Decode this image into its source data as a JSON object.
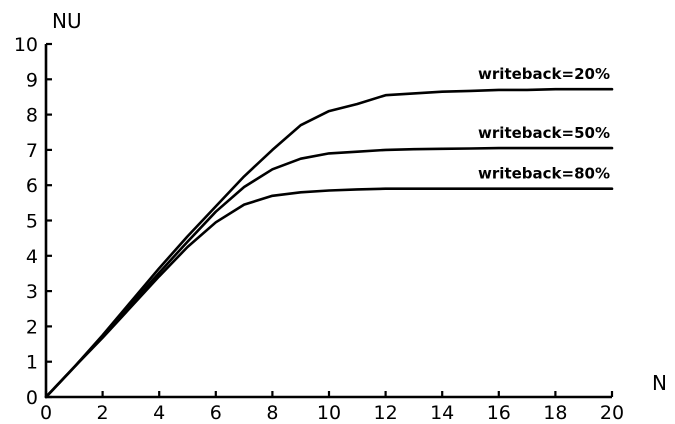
{
  "chart_data": {
    "type": "line",
    "title": "",
    "xlabel": "N",
    "ylabel": "NU",
    "xlim": [
      0,
      20
    ],
    "ylim": [
      0,
      10
    ],
    "xticks": [
      0,
      2,
      4,
      6,
      8,
      10,
      12,
      14,
      16,
      18,
      20
    ],
    "yticks": [
      0,
      1,
      2,
      3,
      4,
      5,
      6,
      7,
      8,
      9,
      10
    ],
    "grid": false,
    "line_color": "#000000",
    "series": [
      {
        "name": "writeback=20%",
        "x": [
          0,
          1,
          2,
          3,
          4,
          5,
          6,
          7,
          8,
          9,
          10,
          11,
          12,
          13,
          14,
          15,
          16,
          17,
          18,
          19,
          20
        ],
        "y": [
          0,
          0.85,
          1.75,
          2.7,
          3.65,
          4.55,
          5.4,
          6.25,
          7.0,
          7.7,
          8.1,
          8.3,
          8.55,
          8.6,
          8.65,
          8.67,
          8.7,
          8.7,
          8.72,
          8.72,
          8.72
        ]
      },
      {
        "name": "writeback=50%",
        "x": [
          0,
          1,
          2,
          3,
          4,
          5,
          6,
          7,
          8,
          9,
          10,
          11,
          12,
          13,
          14,
          15,
          16,
          17,
          18,
          19,
          20
        ],
        "y": [
          0,
          0.85,
          1.72,
          2.62,
          3.52,
          4.4,
          5.25,
          5.95,
          6.45,
          6.75,
          6.9,
          6.95,
          7.0,
          7.02,
          7.03,
          7.04,
          7.05,
          7.05,
          7.05,
          7.05,
          7.05
        ]
      },
      {
        "name": "writeback=80%",
        "x": [
          0,
          1,
          2,
          3,
          4,
          5,
          6,
          7,
          8,
          9,
          10,
          11,
          12,
          13,
          14,
          15,
          16,
          17,
          18,
          19,
          20
        ],
        "y": [
          0,
          0.85,
          1.68,
          2.55,
          3.42,
          4.25,
          4.95,
          5.45,
          5.7,
          5.8,
          5.85,
          5.88,
          5.9,
          5.9,
          5.9,
          5.9,
          5.9,
          5.9,
          5.9,
          5.9,
          5.9
        ]
      }
    ]
  }
}
